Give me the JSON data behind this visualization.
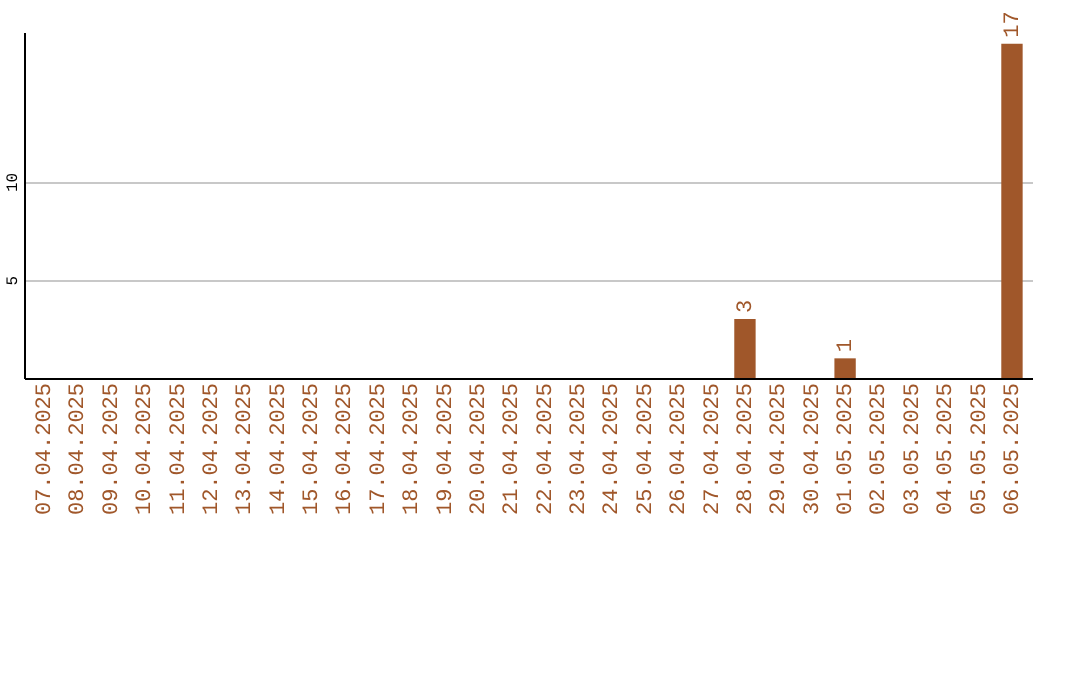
{
  "chart_data": {
    "type": "bar",
    "categories": [
      "07.04.2025",
      "08.04.2025",
      "09.04.2025",
      "10.04.2025",
      "11.04.2025",
      "12.04.2025",
      "13.04.2025",
      "14.04.2025",
      "15.04.2025",
      "16.04.2025",
      "17.04.2025",
      "18.04.2025",
      "19.04.2025",
      "20.04.2025",
      "21.04.2025",
      "22.04.2025",
      "23.04.2025",
      "24.04.2025",
      "25.04.2025",
      "26.04.2025",
      "27.04.2025",
      "28.04.2025",
      "29.04.2025",
      "30.04.2025",
      "01.05.2025",
      "02.05.2025",
      "03.05.2025",
      "04.05.2025",
      "05.05.2025",
      "06.05.2025"
    ],
    "values": [
      0,
      0,
      0,
      0,
      0,
      0,
      0,
      0,
      0,
      0,
      0,
      0,
      0,
      0,
      0,
      0,
      0,
      0,
      0,
      0,
      0,
      3,
      0,
      0,
      1,
      0,
      0,
      0,
      0,
      17
    ],
    "value_labels": [
      null,
      null,
      null,
      null,
      null,
      null,
      null,
      null,
      null,
      null,
      null,
      null,
      null,
      null,
      null,
      null,
      null,
      null,
      null,
      null,
      null,
      "3",
      null,
      null,
      "1",
      null,
      null,
      null,
      null,
      "17"
    ],
    "color": "#a0572a",
    "ylim": [
      0,
      17.6
    ],
    "yticks": [
      5,
      10
    ],
    "grid": "y"
  }
}
